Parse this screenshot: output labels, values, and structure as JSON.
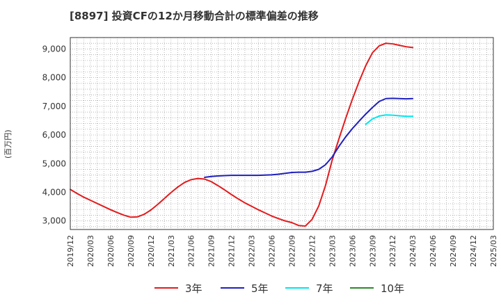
{
  "chart_data": {
    "type": "line",
    "title": "[8897]  投資CFの12か月移動合計の標準偏差の推移",
    "ylabel": "(百万円)",
    "xlabel": "",
    "ylim": [
      2700,
      9400
    ],
    "yticks": [
      3000,
      4000,
      5000,
      6000,
      7000,
      8000,
      9000
    ],
    "ytick_labels": [
      "3,000",
      "4,000",
      "5,000",
      "6,000",
      "7,000",
      "8,000",
      "9,000"
    ],
    "xtick_labels": [
      "2019/12",
      "2020/03",
      "2020/06",
      "2020/09",
      "2020/12",
      "2021/03",
      "2021/06",
      "2021/09",
      "2021/12",
      "2022/03",
      "2022/06",
      "2022/09",
      "2022/12",
      "2023/03",
      "2023/06",
      "2023/09",
      "2023/12",
      "2024/03",
      "2024/06",
      "2024/09",
      "2024/12",
      "2025/03"
    ],
    "grid": true,
    "legend_position": "bottom",
    "series": [
      {
        "name": "3年",
        "color": "#e31a1c",
        "x": [
          "2019/12",
          "2020/01",
          "2020/02",
          "2020/03",
          "2020/04",
          "2020/05",
          "2020/06",
          "2020/07",
          "2020/08",
          "2020/09",
          "2020/10",
          "2020/11",
          "2020/12",
          "2021/01",
          "2021/02",
          "2021/03",
          "2021/04",
          "2021/05",
          "2021/06",
          "2021/07",
          "2021/08",
          "2021/09",
          "2021/10",
          "2021/11",
          "2021/12",
          "2022/01",
          "2022/02",
          "2022/03",
          "2022/04",
          "2022/05",
          "2022/06",
          "2022/07",
          "2022/08",
          "2022/09",
          "2022/10",
          "2022/11",
          "2022/12",
          "2023/01",
          "2023/02",
          "2023/03",
          "2023/04",
          "2023/05",
          "2023/06",
          "2023/07",
          "2023/08",
          "2023/09",
          "2023/10",
          "2023/11",
          "2023/12",
          "2024/01",
          "2024/02",
          "2024/03"
        ],
        "values": [
          4100,
          3960,
          3830,
          3720,
          3610,
          3500,
          3390,
          3290,
          3200,
          3130,
          3140,
          3230,
          3380,
          3570,
          3780,
          3990,
          4180,
          4340,
          4440,
          4480,
          4460,
          4370,
          4230,
          4080,
          3920,
          3770,
          3630,
          3510,
          3390,
          3280,
          3170,
          3080,
          3000,
          2940,
          2840,
          2820,
          3050,
          3520,
          4230,
          5120,
          5860,
          6570,
          7240,
          7860,
          8420,
          8870,
          9110,
          9200,
          9180,
          9130,
          9080,
          9050
        ]
      },
      {
        "name": "5年",
        "color": "#1f1fbf",
        "x": [
          "2021/08",
          "2021/09",
          "2021/10",
          "2021/11",
          "2021/12",
          "2022/01",
          "2022/02",
          "2022/03",
          "2022/04",
          "2022/05",
          "2022/06",
          "2022/07",
          "2022/08",
          "2022/09",
          "2022/10",
          "2022/11",
          "2022/12",
          "2023/01",
          "2023/02",
          "2023/03",
          "2023/04",
          "2023/05",
          "2023/06",
          "2023/07",
          "2023/08",
          "2023/09",
          "2023/10",
          "2023/11",
          "2023/12",
          "2024/01",
          "2024/02",
          "2024/03"
        ],
        "values": [
          4520,
          4550,
          4570,
          4580,
          4590,
          4590,
          4590,
          4590,
          4590,
          4600,
          4610,
          4630,
          4660,
          4690,
          4700,
          4700,
          4730,
          4800,
          4960,
          5230,
          5600,
          5930,
          6220,
          6480,
          6730,
          6960,
          7170,
          7270,
          7280,
          7270,
          7260,
          7270
        ]
      },
      {
        "name": "7年",
        "color": "#00e5ee",
        "x": [
          "2023/08",
          "2023/09",
          "2023/10",
          "2023/11",
          "2023/12",
          "2024/01",
          "2024/02",
          "2024/03"
        ],
        "values": [
          6370,
          6560,
          6660,
          6700,
          6690,
          6670,
          6650,
          6650
        ]
      },
      {
        "name": "10年",
        "color": "#2a8a2a",
        "x": [],
        "values": []
      }
    ]
  }
}
